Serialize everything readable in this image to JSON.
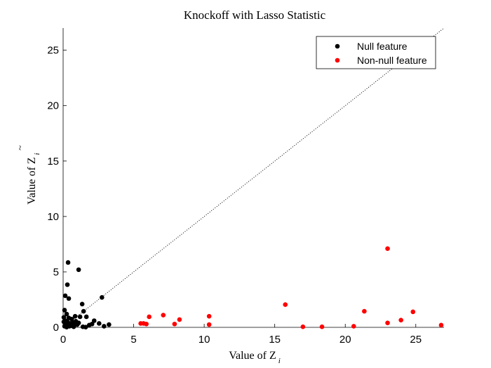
{
  "chart_data": {
    "type": "scatter",
    "title": "Knockoff with Lasso Statistic",
    "xlabel": "Value of Z",
    "xlabel_sub": "i",
    "ylabel": "Value of Z",
    "ylabel_sub": "i",
    "xlim": [
      0,
      27
    ],
    "ylim": [
      0,
      27
    ],
    "xticks": [
      0,
      5,
      10,
      15,
      20,
      25
    ],
    "yticks": [
      0,
      5,
      10,
      15,
      20,
      25
    ],
    "grid": false,
    "legend": "top-right",
    "reference_line": "y = x (dotted)",
    "series": [
      {
        "name": "Null feature",
        "color": "#000000",
        "points": [
          [
            0.35,
            5.85
          ],
          [
            1.1,
            5.2
          ],
          [
            0.3,
            3.85
          ],
          [
            2.75,
            2.7
          ],
          [
            0.15,
            2.85
          ],
          [
            0.4,
            2.6
          ],
          [
            1.35,
            2.1
          ],
          [
            0.1,
            1.55
          ],
          [
            1.45,
            1.45
          ],
          [
            0.25,
            1.2
          ],
          [
            0.85,
            1.0
          ],
          [
            1.2,
            0.95
          ],
          [
            1.65,
            0.95
          ],
          [
            0.05,
            0.9
          ],
          [
            0.4,
            0.85
          ],
          [
            0.6,
            0.75
          ],
          [
            2.2,
            0.6
          ],
          [
            0.15,
            0.6
          ],
          [
            0.9,
            0.55
          ],
          [
            0.3,
            0.5
          ],
          [
            0.05,
            0.5
          ],
          [
            0.7,
            0.45
          ],
          [
            1.1,
            0.4
          ],
          [
            2.55,
            0.35
          ],
          [
            0.2,
            0.35
          ],
          [
            0.5,
            0.35
          ],
          [
            0.8,
            0.3
          ],
          [
            2.05,
            0.3
          ],
          [
            3.25,
            0.25
          ],
          [
            1.0,
            0.25
          ],
          [
            0.3,
            0.2
          ],
          [
            1.85,
            0.2
          ],
          [
            0.6,
            0.15
          ],
          [
            2.9,
            0.1
          ],
          [
            0.1,
            0.1
          ],
          [
            0.45,
            0.1
          ],
          [
            1.4,
            0.05
          ],
          [
            0.75,
            0.05
          ],
          [
            0.25,
            0.02
          ],
          [
            1.6,
            0.02
          ]
        ]
      },
      {
        "name": "Non-null feature",
        "color": "#ff0000",
        "points": [
          [
            23.0,
            7.1
          ],
          [
            15.75,
            2.05
          ],
          [
            21.35,
            1.45
          ],
          [
            24.8,
            1.4
          ],
          [
            7.1,
            1.1
          ],
          [
            10.35,
            1.0
          ],
          [
            6.1,
            0.95
          ],
          [
            8.25,
            0.7
          ],
          [
            23.95,
            0.65
          ],
          [
            23.0,
            0.4
          ],
          [
            5.5,
            0.35
          ],
          [
            5.7,
            0.35
          ],
          [
            5.9,
            0.3
          ],
          [
            7.9,
            0.3
          ],
          [
            10.35,
            0.25
          ],
          [
            26.8,
            0.2
          ],
          [
            20.6,
            0.1
          ],
          [
            17.0,
            0.05
          ],
          [
            18.35,
            0.05
          ]
        ]
      }
    ]
  }
}
